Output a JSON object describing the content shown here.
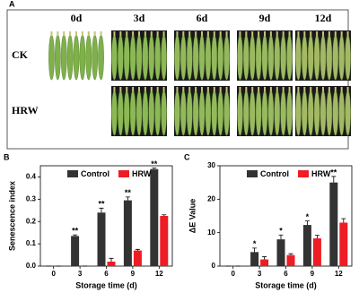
{
  "panel_a": {
    "label": "A",
    "columns": [
      "0d",
      "3d",
      "6d",
      "9d",
      "12d"
    ],
    "rows": [
      "CK",
      "HRW"
    ]
  },
  "chart_data": [
    {
      "type": "bar",
      "panel_label": "B",
      "ylabel": "Senescence index",
      "xlabel": "Storage time (d)",
      "categories": [
        "0",
        "3",
        "6",
        "9",
        "12"
      ],
      "series": [
        {
          "name": "Control",
          "color": "#333333",
          "values": [
            0,
            0.135,
            0.24,
            0.295,
            0.435
          ],
          "errors": [
            0,
            0.005,
            0.02,
            0.015,
            0.005
          ],
          "annotations": [
            null,
            "**",
            "**",
            "**",
            "**"
          ]
        },
        {
          "name": "HRW",
          "color": "#ee1c24",
          "values": [
            0,
            0,
            0.02,
            0.07,
            0.225
          ],
          "errors": [
            0,
            0,
            0.015,
            0.005,
            0.005
          ],
          "annotations": [
            null,
            null,
            null,
            null,
            null
          ]
        }
      ],
      "ylim": [
        0,
        0.45
      ],
      "yticks": [
        {
          "value": 0,
          "label": "0.0"
        },
        0.1,
        0.2,
        0.3,
        0.4
      ]
    },
    {
      "type": "bar",
      "panel_label": "C",
      "ylabel": "ΔE Value",
      "xlabel": "Storage time (d)",
      "categories": [
        "0",
        "3",
        "6",
        "9",
        "12"
      ],
      "series": [
        {
          "name": "Control",
          "color": "#333333",
          "values": [
            0,
            4.2,
            8,
            12.3,
            25
          ],
          "errors": [
            0,
            1.2,
            1.3,
            1.2,
            1.8
          ],
          "annotations": [
            null,
            "*",
            "*",
            "*",
            "**"
          ]
        },
        {
          "name": "HRW",
          "color": "#ee1c24",
          "values": [
            0,
            2,
            3.3,
            8.3,
            13
          ],
          "errors": [
            0,
            0.8,
            0.4,
            0.9,
            1.2
          ],
          "annotations": [
            null,
            null,
            null,
            null,
            null
          ]
        }
      ],
      "ylim": [
        0,
        30
      ],
      "yticks": [
        0,
        10,
        20,
        30
      ]
    }
  ]
}
